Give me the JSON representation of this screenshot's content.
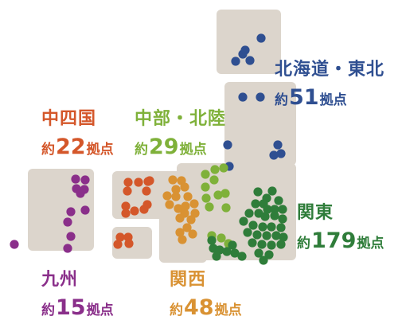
{
  "regions": [
    {
      "id": "hokkaido-tohoku",
      "name": "北海道・東北",
      "prefix": "約",
      "count": "51",
      "suffix": "拠点",
      "color": "#2f4f91"
    },
    {
      "id": "chushikoku",
      "name": "中四国",
      "prefix": "約",
      "count": "22",
      "suffix": "拠点",
      "color": "#d4572a"
    },
    {
      "id": "chubu-hokuriku",
      "name": "中部・北陸",
      "prefix": "約",
      "count": "29",
      "suffix": "拠点",
      "color": "#7fb13a"
    },
    {
      "id": "kanto",
      "name": "関東",
      "prefix": "約",
      "count": "179",
      "suffix": "拠点",
      "color": "#2f7d3a"
    },
    {
      "id": "kyushu",
      "name": "九州",
      "prefix": "約",
      "count": "15",
      "suffix": "拠点",
      "color": "#8a2f8a"
    },
    {
      "id": "kansai",
      "name": "関西",
      "prefix": "約",
      "count": "48",
      "suffix": "拠点",
      "color": "#d99233"
    }
  ],
  "land_color": "#dcd5cc"
}
